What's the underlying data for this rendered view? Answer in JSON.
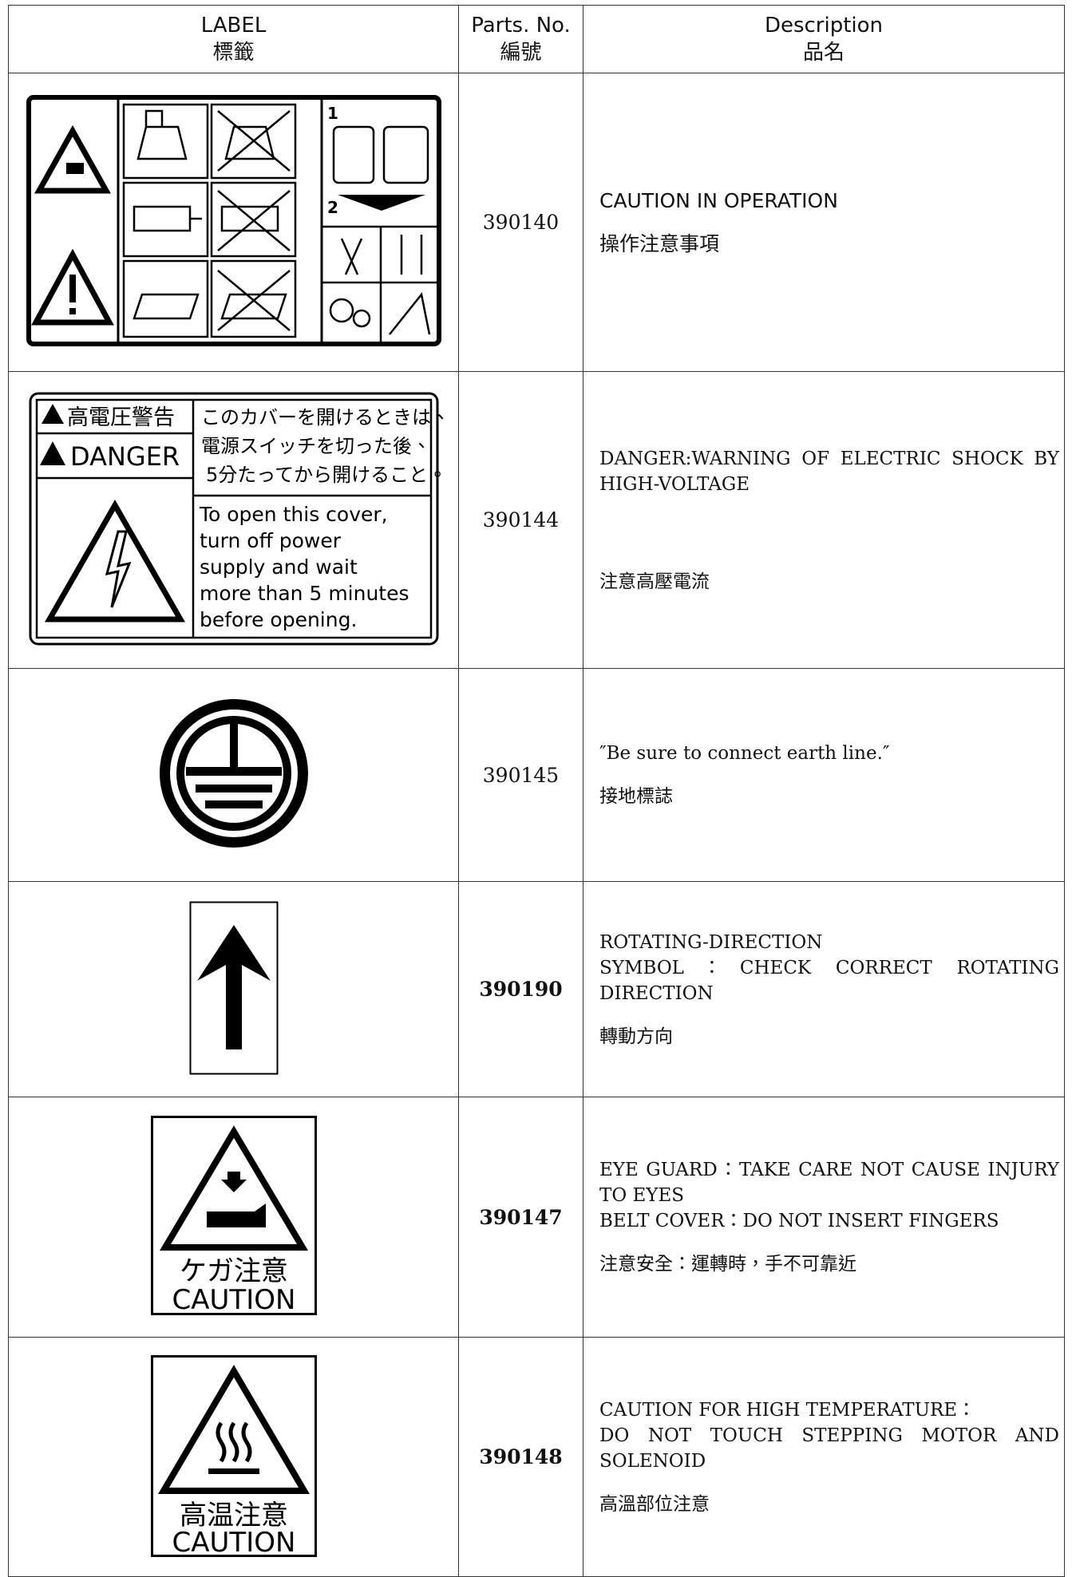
{
  "table": {
    "header": [
      [
        "LABEL",
        "標籤"
      ],
      [
        "Parts. No.",
        "編號"
      ],
      [
        "Description",
        "品名"
      ]
    ],
    "rows": [
      {
        "label_text": [
          "1",
          "2"
        ],
        "part_no": "390140",
        "description": [
          "CAUTION IN OPERATION",
          "操作注意事項"
        ]
      },
      {
        "label_text": [
          "高電圧警告",
          "DANGER",
          "このカバーを開けるときは、",
          "電源スイッチを切った後、",
          "5分たってから開けること。",
          "To open this cover,",
          "turn off power",
          "supply and wait",
          "more than 5 minutes",
          "before opening."
        ],
        "part_no": "390144",
        "description": [
          "DANGER:WARNING OF ELECTRIC SHOCK BY HIGH-VOLTAGE",
          "注意高壓電流"
        ]
      },
      {
        "label_text": [],
        "part_no": "390145",
        "description": [
          "″Be sure to connect earth line.″",
          "接地標誌"
        ]
      },
      {
        "label_text": [],
        "part_no": "390190",
        "description": [
          "ROTATING-DIRECTION",
          "SYMBOL：CHECK CORRECT ROTATING DIRECTION",
          "轉動方向"
        ]
      },
      {
        "label_text": [
          "ケガ注意",
          "CAUTION"
        ],
        "part_no": "390147",
        "description": [
          "EYE GUARD：TAKE CARE NOT CAUSE INJURY TO EYES",
          "BELT COVER：DO NOT INSERT FINGERS",
          "注意安全：運轉時，手不可靠近"
        ]
      },
      {
        "label_text": [
          "高温注意",
          "CAUTION"
        ],
        "part_no": "390148",
        "description": [
          "CAUTION FOR HIGH TEMPERATURE：",
          "DO NOT TOUCH STEPPING MOTOR AND SOLENOID",
          "高溫部位注意"
        ]
      }
    ]
  }
}
